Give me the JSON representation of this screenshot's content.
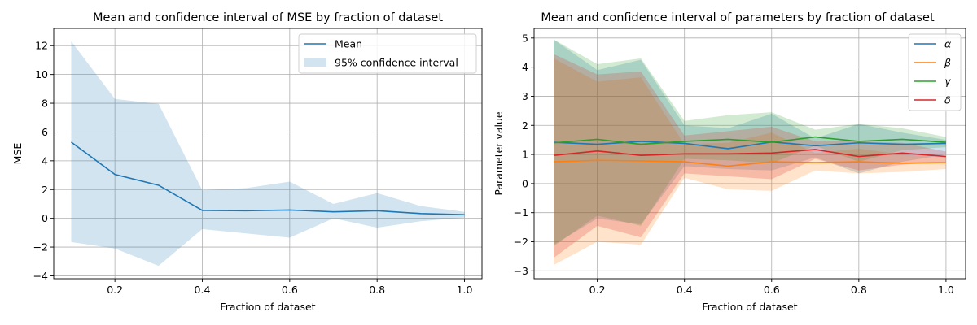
{
  "chart_data": [
    {
      "type": "line",
      "title": "Mean and confidence interval of MSE by fraction of dataset",
      "xlabel": "Fraction of dataset",
      "ylabel": "MSE",
      "xlim": [
        0.06,
        1.04
      ],
      "ylim": [
        -4.2,
        13.2
      ],
      "xticks": [
        0.2,
        0.4,
        0.6,
        0.8,
        1.0
      ],
      "xtick_labels": [
        "0.2",
        "0.4",
        "0.6",
        "0.8",
        "1.0"
      ],
      "yticks": [
        -4,
        -2,
        0,
        2,
        4,
        6,
        8,
        10,
        12
      ],
      "ytick_labels": [
        "−4",
        "−2",
        "0",
        "2",
        "4",
        "6",
        "8",
        "10",
        "12"
      ],
      "grid": true,
      "legend_position": "top-right",
      "x": [
        0.1,
        0.2,
        0.3,
        0.4,
        0.5,
        0.6,
        0.7,
        0.8,
        0.9,
        1.0
      ],
      "series": [
        {
          "name": "Mean",
          "color": "#1f77b4",
          "values": [
            5.3,
            3.05,
            2.3,
            0.55,
            0.53,
            0.58,
            0.45,
            0.53,
            0.33,
            0.25
          ],
          "band_name": "95% confidence interval",
          "band_color": "#1f77b4",
          "lower": [
            -1.65,
            -2.1,
            -3.3,
            -0.75,
            -1.05,
            -1.35,
            0.0,
            -0.65,
            -0.2,
            0.05
          ],
          "upper": [
            12.3,
            8.3,
            7.95,
            1.95,
            2.1,
            2.55,
            1.0,
            1.75,
            0.85,
            0.45
          ]
        }
      ]
    },
    {
      "type": "line",
      "title": "Mean and confidence interval of parameters by fraction of dataset",
      "xlabel": "Fraction of dataset",
      "ylabel": "Parameter value",
      "xlim": [
        0.055,
        1.045
      ],
      "ylim": [
        -3.27,
        5.33
      ],
      "xticks": [
        0.2,
        0.4,
        0.6,
        0.8,
        1.0
      ],
      "xtick_labels": [
        "0.2",
        "0.4",
        "0.6",
        "0.8",
        "1.0"
      ],
      "yticks": [
        -3,
        -2,
        -1,
        0,
        1,
        2,
        3,
        4,
        5
      ],
      "ytick_labels": [
        "−3",
        "−2",
        "−1",
        "0",
        "1",
        "2",
        "3",
        "4",
        "5"
      ],
      "grid": true,
      "legend_position": "top-right",
      "x": [
        0.1,
        0.2,
        0.3,
        0.4,
        0.5,
        0.6,
        0.7,
        0.8,
        0.9,
        1.0
      ],
      "series": [
        {
          "name": "α",
          "color": "#1f77b4",
          "values": [
            1.42,
            1.35,
            1.45,
            1.38,
            1.2,
            1.43,
            1.3,
            1.4,
            1.35,
            1.38
          ],
          "lower": [
            -2.1,
            -1.2,
            -1.4,
            0.6,
            0.5,
            0.45,
            0.9,
            0.35,
            0.75,
            1.0
          ],
          "upper": [
            4.95,
            3.9,
            4.25,
            2.0,
            1.9,
            2.4,
            1.55,
            2.05,
            1.75,
            1.5
          ]
        },
        {
          "name": "β",
          "color": "#ff7f0e",
          "values": [
            0.75,
            0.8,
            0.78,
            0.75,
            0.6,
            0.75,
            0.72,
            0.75,
            0.7,
            0.72
          ],
          "lower": [
            -2.8,
            -2.0,
            -2.1,
            0.2,
            -0.2,
            -0.25,
            0.45,
            0.35,
            0.4,
            0.5
          ],
          "upper": [
            4.3,
            3.5,
            3.65,
            1.35,
            1.4,
            1.75,
            1.05,
            1.2,
            1.0,
            0.9
          ]
        },
        {
          "name": "γ",
          "color": "#2ca02c",
          "values": [
            1.4,
            1.52,
            1.35,
            1.45,
            1.52,
            1.42,
            1.6,
            1.45,
            1.52,
            1.42
          ],
          "lower": [
            -2.15,
            -1.1,
            -1.45,
            0.85,
            0.8,
            0.7,
            1.3,
            0.75,
            1.15,
            1.25
          ],
          "upper": [
            4.95,
            4.1,
            4.3,
            2.15,
            2.35,
            2.45,
            1.85,
            2.05,
            1.9,
            1.6
          ]
        },
        {
          "name": "δ",
          "color": "#d62728",
          "values": [
            0.97,
            1.12,
            0.97,
            1.02,
            1.02,
            1.05,
            1.17,
            0.93,
            1.05,
            0.93
          ],
          "lower": [
            -2.55,
            -1.45,
            -1.85,
            0.35,
            0.25,
            0.15,
            0.85,
            0.45,
            0.65,
            0.75
          ],
          "upper": [
            4.45,
            3.75,
            3.85,
            1.65,
            1.8,
            1.95,
            1.45,
            1.45,
            1.4,
            1.1
          ]
        }
      ]
    }
  ]
}
